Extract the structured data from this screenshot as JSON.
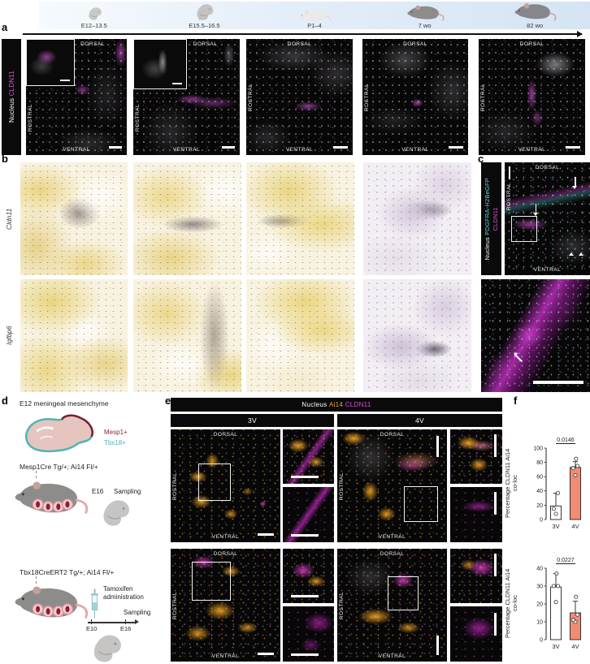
{
  "panels": {
    "a": "a",
    "b": "b",
    "c": "c",
    "d": "d",
    "e": "e",
    "f": "f"
  },
  "timeline": {
    "stages": [
      {
        "label": "E12–13.5",
        "icon": "embryo-small-icon"
      },
      {
        "label": "E15.5–16.5",
        "icon": "embryo-large-icon"
      },
      {
        "label": "P1–4",
        "icon": "pup-icon"
      },
      {
        "label": "7 wo",
        "icon": "adult-mouse-icon"
      },
      {
        "label": "82 wo",
        "icon": "aged-mouse-icon"
      }
    ]
  },
  "orientation": {
    "dorsal": "DORSAL",
    "rostral": "ROSTRAL",
    "ventral": "VENTRAL"
  },
  "panel_a": {
    "legend": {
      "nucleus": "Nucleus",
      "marker": "CLDN11"
    }
  },
  "panel_b": {
    "rows": [
      {
        "gene": "Cldn11"
      },
      {
        "gene": "Igfbp6"
      }
    ]
  },
  "panel_c": {
    "legend": {
      "nucleus": "Nucleus",
      "marker1": "PDGFRA-H2BeGFP",
      "marker2": "CLDN11"
    }
  },
  "panel_d": {
    "title": "E12 meningeal mesenchyme",
    "mesp1": "Mesp1+",
    "tbx18": "Tbx18+",
    "genotype1": "Mesp1Cre Tg/+; Ai14 Fl/+",
    "sampling_time": "E16",
    "sampling_label": "Sampling",
    "genotype2": "Tbx18CreERT2 Tg/+; Ai14 Fl/+",
    "treatment_line1": "Tamoxifen",
    "treatment_line2": "administration",
    "timeline_start": "E10",
    "timeline_end": "E16",
    "sampling2_label": "Sampling"
  },
  "panel_e": {
    "legend": {
      "nucleus": "Nucleus",
      "marker1": "Ai14",
      "marker2": "CLDN11"
    },
    "col1": "3V",
    "col2": "4V"
  },
  "chart_data": [
    {
      "type": "bar",
      "categories": [
        "3V",
        "4V"
      ],
      "values": [
        19,
        73
      ],
      "errors_up": [
        18,
        8
      ],
      "points": [
        [
          8,
          15,
          37
        ],
        [
          62,
          72,
          75,
          85
        ]
      ],
      "p_value": "0.0146",
      "ylabel": "Percentage CLDN11 Ai14 co-loc",
      "ylabel_lines": [
        "Percentage CLDN11 Ai14",
        "co-loc"
      ],
      "ylim": [
        0,
        100
      ],
      "yticks": [
        0,
        20,
        40,
        60,
        80,
        100
      ],
      "bar_colors": [
        "#ffffff",
        "#f28b72"
      ]
    },
    {
      "type": "bar",
      "categories": [
        "3V",
        "4V"
      ],
      "values": [
        29.5,
        15
      ],
      "errors_up": [
        7.5,
        6.5
      ],
      "points": [
        [
          21,
          30,
          30,
          37
        ],
        [
          10,
          11,
          14,
          24
        ]
      ],
      "p_value": "0.0227",
      "ylabel": "Percentage CLDN11 Ai14 co-loc",
      "ylabel_lines": [
        "Percentage CLDN11 Ai14",
        "co-loc"
      ],
      "ylim": [
        0,
        40
      ],
      "yticks": [
        0,
        10,
        20,
        30,
        40
      ],
      "bar_colors": [
        "#ffffff",
        "#f28b72"
      ]
    }
  ],
  "colors": {
    "magenta": "#e34fe0",
    "cyan": "#59d8e4",
    "orange": "#f0a32f",
    "salmon": "#f28b72",
    "mesp1": "#8c2332",
    "tbx18": "#4fb3ba"
  }
}
